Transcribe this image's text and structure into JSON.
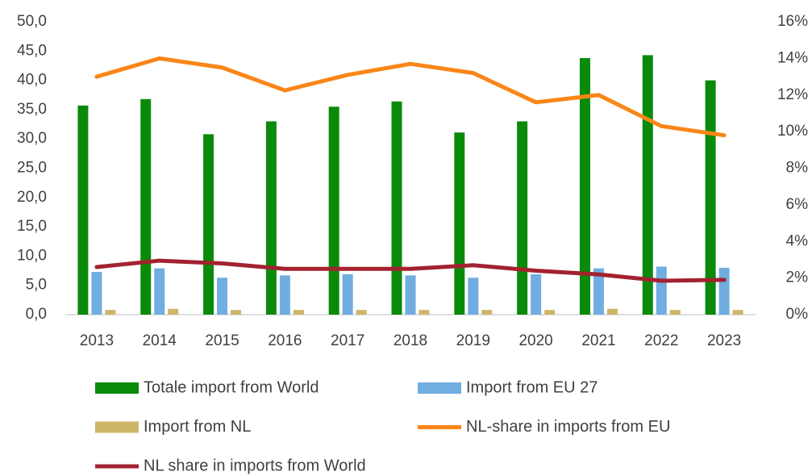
{
  "chart_data": {
    "type": "bar",
    "categories": [
      "2013",
      "2014",
      "2015",
      "2016",
      "2017",
      "2018",
      "2019",
      "2020",
      "2021",
      "2022",
      "2023"
    ],
    "series": [
      {
        "name": "Totale import from World",
        "color": "#0a8a0a",
        "type": "bar",
        "values": [
          35.7,
          36.8,
          30.8,
          33.0,
          35.5,
          36.4,
          31.1,
          33.0,
          43.8,
          44.3,
          40.0
        ]
      },
      {
        "name": "Import from EU 27",
        "color": "#70ade0",
        "type": "bar",
        "values": [
          7.3,
          7.9,
          6.3,
          6.7,
          6.9,
          6.7,
          6.3,
          6.9,
          7.9,
          8.2,
          8.0
        ]
      },
      {
        "name": "Import from NL",
        "color": "#cdb56a",
        "type": "bar",
        "values": [
          0.8,
          1.0,
          0.8,
          0.8,
          0.8,
          0.8,
          0.8,
          0.8,
          1.0,
          0.8,
          0.8
        ]
      },
      {
        "name": "NL-share in imports from EU",
        "color": "#f98617",
        "type": "line",
        "axis": "y2",
        "values": [
          13.0,
          14.0,
          13.5,
          12.25,
          13.1,
          13.7,
          13.2,
          11.6,
          12.0,
          10.3,
          9.8
        ]
      },
      {
        "name": "NL share in imports from World",
        "color": "#a3222f",
        "type": "line",
        "axis": "y2",
        "values": [
          2.6,
          2.95,
          2.8,
          2.5,
          2.5,
          2.5,
          2.7,
          2.4,
          2.2,
          1.85,
          1.9
        ]
      }
    ],
    "ylim": [
      0,
      50
    ],
    "yticks": [
      {
        "value": 0,
        "label": "0,0"
      },
      {
        "value": 5,
        "label": "5,0"
      },
      {
        "value": 10,
        "label": "10,0"
      },
      {
        "value": 15,
        "label": "15,0"
      },
      {
        "value": 20,
        "label": "20,0"
      },
      {
        "value": 25,
        "label": "25,0"
      },
      {
        "value": 30,
        "label": "30,0"
      },
      {
        "value": 35,
        "label": "35,0"
      },
      {
        "value": 40,
        "label": "40,0"
      },
      {
        "value": 45,
        "label": "45,0"
      },
      {
        "value": 50,
        "label": "50,0"
      }
    ],
    "y2lim": [
      0,
      16
    ],
    "y2ticks": [
      {
        "value": 0,
        "label": "0%"
      },
      {
        "value": 2,
        "label": "2%"
      },
      {
        "value": 4,
        "label": "4%"
      },
      {
        "value": 6,
        "label": "6%"
      },
      {
        "value": 8,
        "label": "8%"
      },
      {
        "value": 10,
        "label": "10%"
      },
      {
        "value": 12,
        "label": "12%"
      },
      {
        "value": 14,
        "label": "14%"
      },
      {
        "value": 16,
        "label": "16%"
      }
    ],
    "grid": false,
    "legend": "bottom"
  }
}
